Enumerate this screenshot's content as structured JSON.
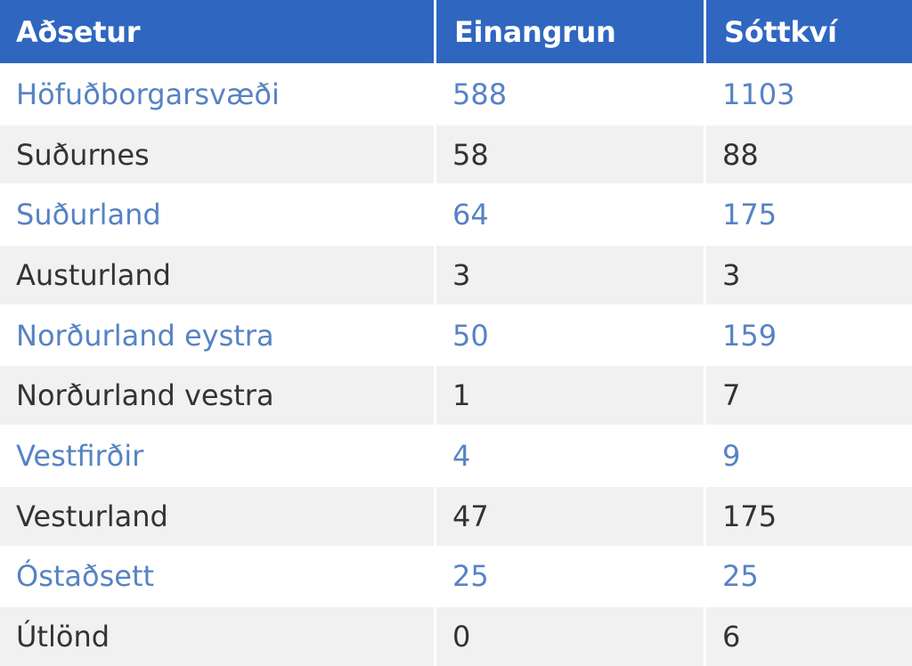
{
  "chart_data": {
    "type": "table",
    "columns": [
      "Aðsetur",
      "Einangrun",
      "Sóttkví"
    ],
    "rows": [
      {
        "region": "Höfuðborgarsvæði",
        "einangrun": "588",
        "sottkvi": "1103"
      },
      {
        "region": "Suðurnes",
        "einangrun": "58",
        "sottkvi": "88"
      },
      {
        "region": "Suðurland",
        "einangrun": "64",
        "sottkvi": "175"
      },
      {
        "region": "Austurland",
        "einangrun": "3",
        "sottkvi": "3"
      },
      {
        "region": "Norðurland eystra",
        "einangrun": "50",
        "sottkvi": "159"
      },
      {
        "region": "Norðurland vestra",
        "einangrun": "1",
        "sottkvi": "7"
      },
      {
        "region": "Vestfirðir",
        "einangrun": "4",
        "sottkvi": "9"
      },
      {
        "region": "Vesturland",
        "einangrun": "47",
        "sottkvi": "175"
      },
      {
        "region": "Óstaðsett",
        "einangrun": "25",
        "sottkvi": "25"
      },
      {
        "region": "Útlönd",
        "einangrun": "0",
        "sottkvi": "6"
      }
    ]
  },
  "colors": {
    "header_bg": "#2f66c0",
    "header_text": "#ffffff",
    "odd_row_text": "#5683c4",
    "even_row_text": "#333333",
    "even_row_bg": "#f1f1f1"
  }
}
